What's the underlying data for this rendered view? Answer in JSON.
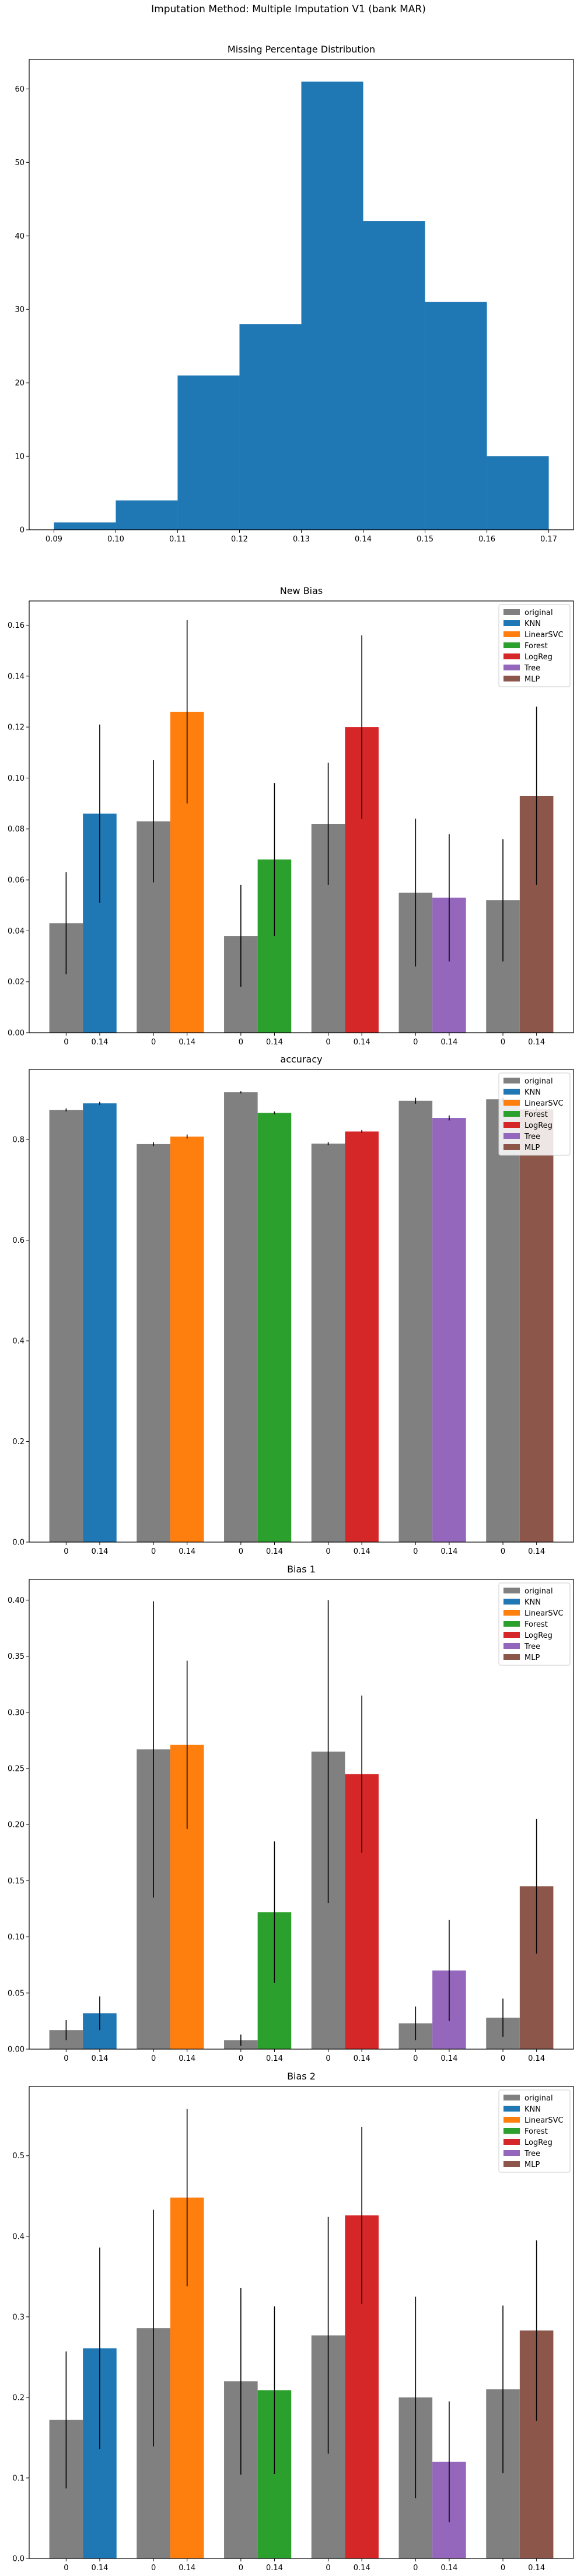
{
  "figure": {
    "suptitle": "Imputation Method: Multiple Imputation V1 (bank MAR)"
  },
  "legend": {
    "entries": [
      {
        "label": "original",
        "color": "#808080"
      },
      {
        "label": "KNN",
        "color": "#1f77b4"
      },
      {
        "label": "LinearSVC",
        "color": "#ff7f0e"
      },
      {
        "label": "Forest",
        "color": "#2ca02c"
      },
      {
        "label": "LogReg",
        "color": "#d62728"
      },
      {
        "label": "Tree",
        "color": "#9467bd"
      },
      {
        "label": "MLP",
        "color": "#8c564b"
      }
    ]
  },
  "chart_data": [
    {
      "type": "bar",
      "title": "Missing Percentage Distribution",
      "xlabel": "",
      "ylabel": "",
      "bin_edges": [
        0.09,
        0.1,
        0.11,
        0.12,
        0.13,
        0.14,
        0.15,
        0.16,
        0.17
      ],
      "values": [
        1,
        4,
        21,
        28,
        61,
        42,
        31,
        10
      ],
      "color": "#1f77b4",
      "xlim": [
        0.086,
        0.174
      ],
      "ylim": [
        0,
        64
      ],
      "xticks": [
        "0.09",
        "0.10",
        "0.11",
        "0.12",
        "0.13",
        "0.14",
        "0.15",
        "0.16",
        "0.17"
      ],
      "yticks": [
        "0",
        "10",
        "20",
        "30",
        "40",
        "50",
        "60"
      ],
      "grid": false
    },
    {
      "type": "bar",
      "title": "New Bias",
      "categories": [
        "0",
        "0.14",
        "0",
        "0.14",
        "0",
        "0.14",
        "0",
        "0.14",
        "0",
        "0.14",
        "0",
        "0.14"
      ],
      "groups": [
        {
          "model": "KNN",
          "original": 0.043,
          "original_err": 0.02,
          "imputed": 0.086,
          "imputed_err": 0.035
        },
        {
          "model": "LinearSVC",
          "original": 0.083,
          "original_err": 0.024,
          "imputed": 0.126,
          "imputed_err": 0.036
        },
        {
          "model": "Forest",
          "original": 0.038,
          "original_err": 0.02,
          "imputed": 0.068,
          "imputed_err": 0.03
        },
        {
          "model": "LogReg",
          "original": 0.082,
          "original_err": 0.024,
          "imputed": 0.12,
          "imputed_err": 0.036
        },
        {
          "model": "Tree",
          "original": 0.055,
          "original_err": 0.029,
          "imputed": 0.053,
          "imputed_err": 0.025
        },
        {
          "model": "MLP",
          "original": 0.052,
          "original_err": 0.024,
          "imputed": 0.093,
          "imputed_err": 0.035
        }
      ],
      "ylim": [
        0,
        0.1695
      ],
      "yticks": [
        "0.00",
        "0.02",
        "0.04",
        "0.06",
        "0.08",
        "0.10",
        "0.12",
        "0.14",
        "0.16"
      ],
      "legend_position": "top-right",
      "grid": false
    },
    {
      "type": "bar",
      "title": "accuracy",
      "categories": [
        "0",
        "0.14",
        "0",
        "0.14",
        "0",
        "0.14",
        "0",
        "0.14",
        "0",
        "0.14",
        "0",
        "0.14"
      ],
      "groups": [
        {
          "model": "KNN",
          "original": 0.859,
          "original_err": 0.003,
          "imputed": 0.872,
          "imputed_err": 0.003
        },
        {
          "model": "LinearSVC",
          "original": 0.791,
          "original_err": 0.004,
          "imputed": 0.806,
          "imputed_err": 0.004
        },
        {
          "model": "Forest",
          "original": 0.894,
          "original_err": 0.002,
          "imputed": 0.853,
          "imputed_err": 0.003
        },
        {
          "model": "LogReg",
          "original": 0.792,
          "original_err": 0.003,
          "imputed": 0.816,
          "imputed_err": 0.003
        },
        {
          "model": "Tree",
          "original": 0.877,
          "original_err": 0.006,
          "imputed": 0.843,
          "imputed_err": 0.005
        },
        {
          "model": "MLP",
          "original": 0.88,
          "original_err": 0.004,
          "imputed": 0.86,
          "imputed_err": 0.004
        }
      ],
      "ylim": [
        0,
        0.9393
      ],
      "yticks": [
        "0.0",
        "0.2",
        "0.4",
        "0.6",
        "0.8"
      ],
      "legend_position": "top-right",
      "grid": false
    },
    {
      "type": "bar",
      "title": "Bias 1",
      "categories": [
        "0",
        "0.14",
        "0",
        "0.14",
        "0",
        "0.14",
        "0",
        "0.14",
        "0",
        "0.14",
        "0",
        "0.14"
      ],
      "groups": [
        {
          "model": "KNN",
          "original": 0.017,
          "original_err": 0.009,
          "imputed": 0.032,
          "imputed_err": 0.015
        },
        {
          "model": "LinearSVC",
          "original": 0.267,
          "original_err": 0.132,
          "imputed": 0.271,
          "imputed_err": 0.075
        },
        {
          "model": "Forest",
          "original": 0.008,
          "original_err": 0.005,
          "imputed": 0.122,
          "imputed_err": 0.063
        },
        {
          "model": "LogReg",
          "original": 0.265,
          "original_err": 0.135,
          "imputed": 0.245,
          "imputed_err": 0.07
        },
        {
          "model": "Tree",
          "original": 0.023,
          "original_err": 0.015,
          "imputed": 0.07,
          "imputed_err": 0.045
        },
        {
          "model": "MLP",
          "original": 0.028,
          "original_err": 0.017,
          "imputed": 0.145,
          "imputed_err": 0.06
        }
      ],
      "ylim": [
        0,
        0.4184
      ],
      "yticks": [
        "0.00",
        "0.05",
        "0.10",
        "0.15",
        "0.20",
        "0.25",
        "0.30",
        "0.35",
        "0.40"
      ],
      "legend_position": "top-right",
      "grid": false
    },
    {
      "type": "bar",
      "title": "Bias 2",
      "categories": [
        "0",
        "0.14",
        "0",
        "0.14",
        "0",
        "0.14",
        "0",
        "0.14",
        "0",
        "0.14",
        "0",
        "0.14"
      ],
      "groups": [
        {
          "model": "KNN",
          "original": 0.172,
          "original_err": 0.085,
          "imputed": 0.261,
          "imputed_err": 0.125
        },
        {
          "model": "LinearSVC",
          "original": 0.286,
          "original_err": 0.147,
          "imputed": 0.448,
          "imputed_err": 0.11
        },
        {
          "model": "Forest",
          "original": 0.22,
          "original_err": 0.116,
          "imputed": 0.209,
          "imputed_err": 0.104
        },
        {
          "model": "LogReg",
          "original": 0.277,
          "original_err": 0.147,
          "imputed": 0.426,
          "imputed_err": 0.11
        },
        {
          "model": "Tree",
          "original": 0.2,
          "original_err": 0.125,
          "imputed": 0.12,
          "imputed_err": 0.075
        },
        {
          "model": "MLP",
          "original": 0.21,
          "original_err": 0.104,
          "imputed": 0.283,
          "imputed_err": 0.112
        }
      ],
      "ylim": [
        0,
        0.586
      ],
      "yticks": [
        "0.0",
        "0.1",
        "0.2",
        "0.3",
        "0.4",
        "0.5"
      ],
      "legend_position": "top-right",
      "grid": false
    }
  ]
}
